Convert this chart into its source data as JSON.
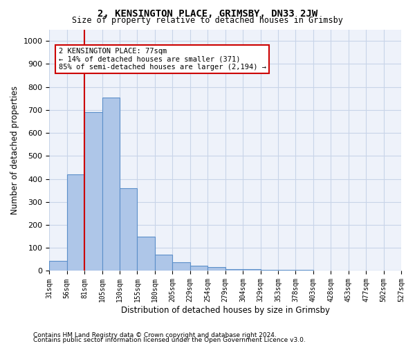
{
  "title": "2, KENSINGTON PLACE, GRIMSBY, DN33 2JW",
  "subtitle": "Size of property relative to detached houses in Grimsby",
  "xlabel": "Distribution of detached houses by size in Grimsby",
  "ylabel": "Number of detached properties",
  "footer_line1": "Contains HM Land Registry data © Crown copyright and database right 2024.",
  "footer_line2": "Contains public sector information licensed under the Open Government Licence v3.0.",
  "bin_labels": [
    "31sqm",
    "56sqm",
    "81sqm",
    "105sqm",
    "130sqm",
    "155sqm",
    "180sqm",
    "205sqm",
    "229sqm",
    "254sqm",
    "279sqm",
    "304sqm",
    "329sqm",
    "353sqm",
    "378sqm",
    "403sqm",
    "428sqm",
    "453sqm",
    "477sqm",
    "502sqm",
    "527sqm"
  ],
  "values": [
    45,
    420,
    690,
    755,
    360,
    150,
    70,
    38,
    22,
    15,
    8,
    7,
    5,
    4,
    3,
    2,
    1,
    1,
    1,
    1
  ],
  "bar_color": "#aec6e8",
  "bar_edge_color": "#5b8fc9",
  "grid_color": "#c8d4e8",
  "background_color": "#eef2fa",
  "property_label": "2 KENSINGTON PLACE: 77sqm",
  "annotation_line2": "← 14% of detached houses are smaller (371)",
  "annotation_line3": "85% of semi-detached houses are larger (2,194) →",
  "annotation_box_color": "#cc0000",
  "vline_color": "#cc0000",
  "vline_bar_index": 1,
  "ylim": [
    0,
    1050
  ],
  "yticks": [
    0,
    100,
    200,
    300,
    400,
    500,
    600,
    700,
    800,
    900,
    1000
  ]
}
